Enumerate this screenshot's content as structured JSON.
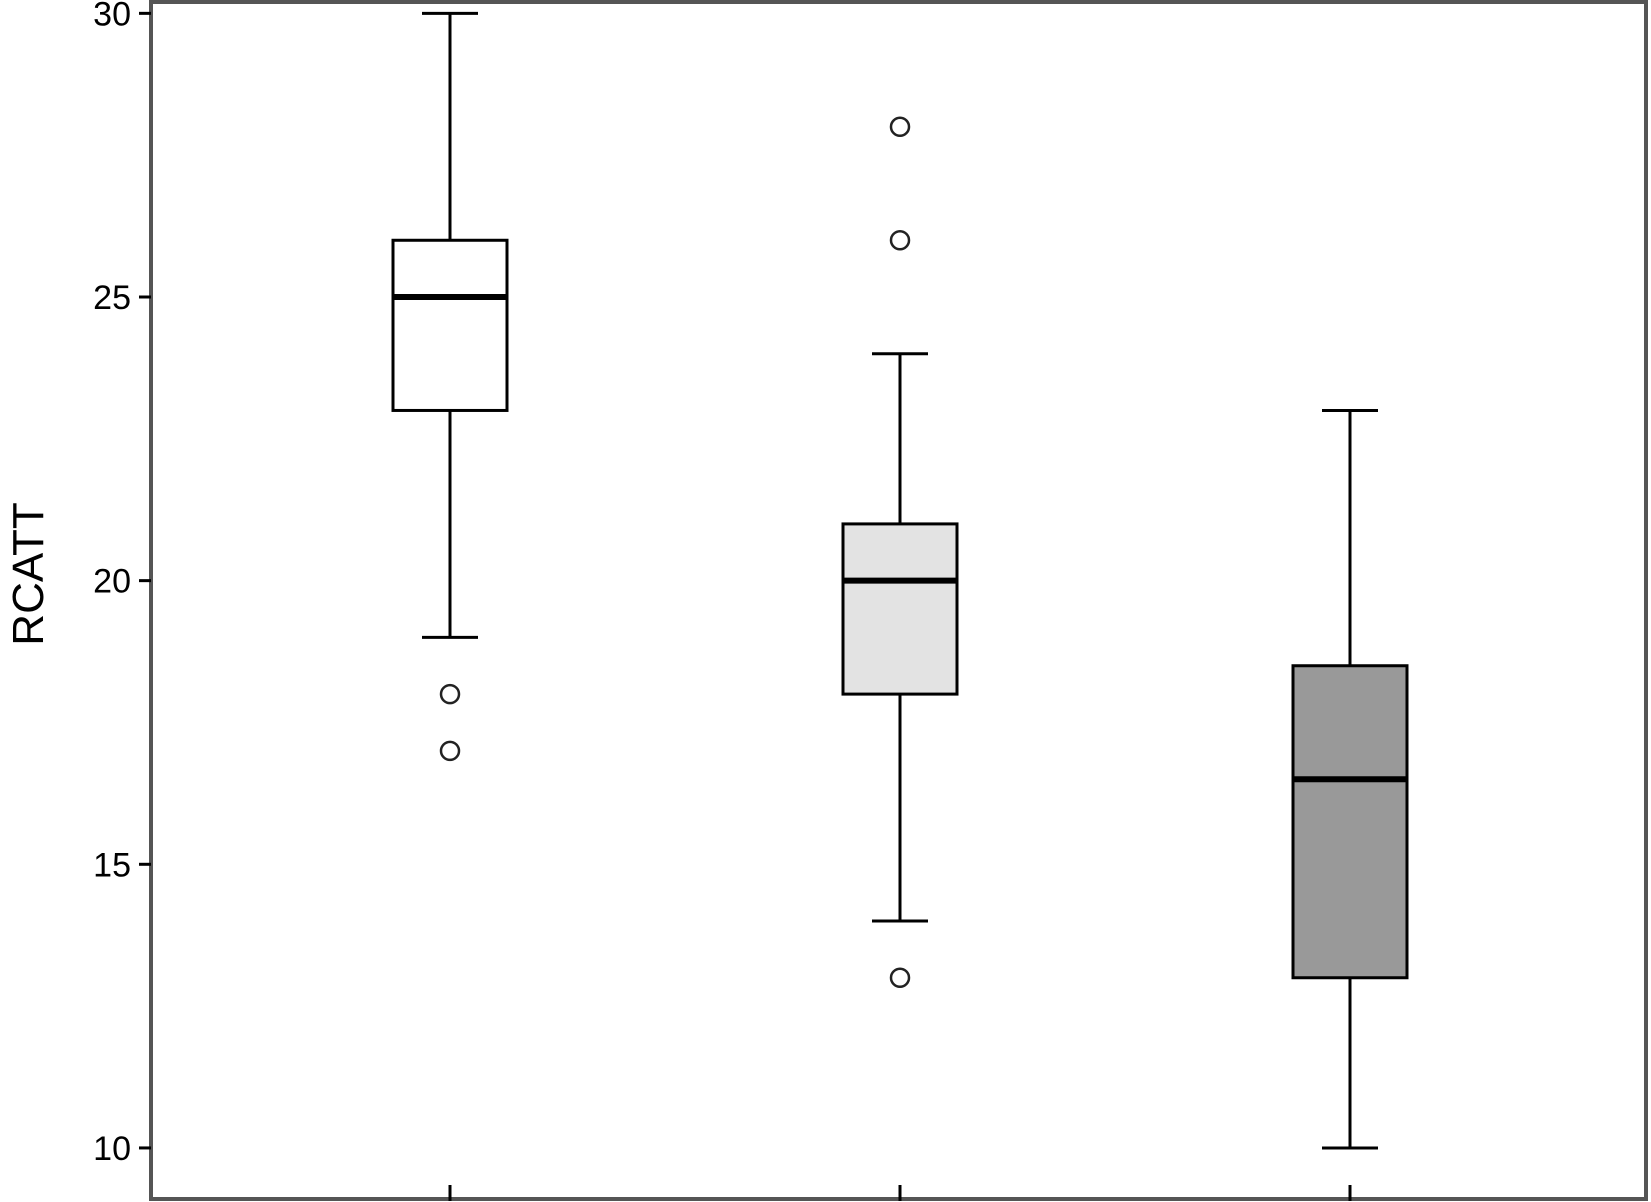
{
  "chart_data": {
    "type": "boxplot",
    "ylabel": "RCATT",
    "ylim": [
      9.1,
      30.2
    ],
    "yticks": [
      10,
      15,
      20,
      25,
      30
    ],
    "grid": false,
    "series": [
      {
        "min": 19,
        "q1": 23,
        "median": 25,
        "q3": 26,
        "max": 30,
        "outliers": [
          18,
          17
        ],
        "fill": "#ffffff"
      },
      {
        "min": 14,
        "q1": 18,
        "median": 20,
        "q3": 21,
        "max": 24,
        "outliers": [
          28,
          26,
          13
        ],
        "fill": "#e3e3e3"
      },
      {
        "min": 10,
        "q1": 13,
        "median": 16.5,
        "q3": 18.5,
        "max": 23,
        "outliers": [],
        "fill": "#999999"
      }
    ]
  },
  "colors": {
    "frame": "#555555",
    "stroke": "#000000",
    "background": "#ffffff"
  }
}
